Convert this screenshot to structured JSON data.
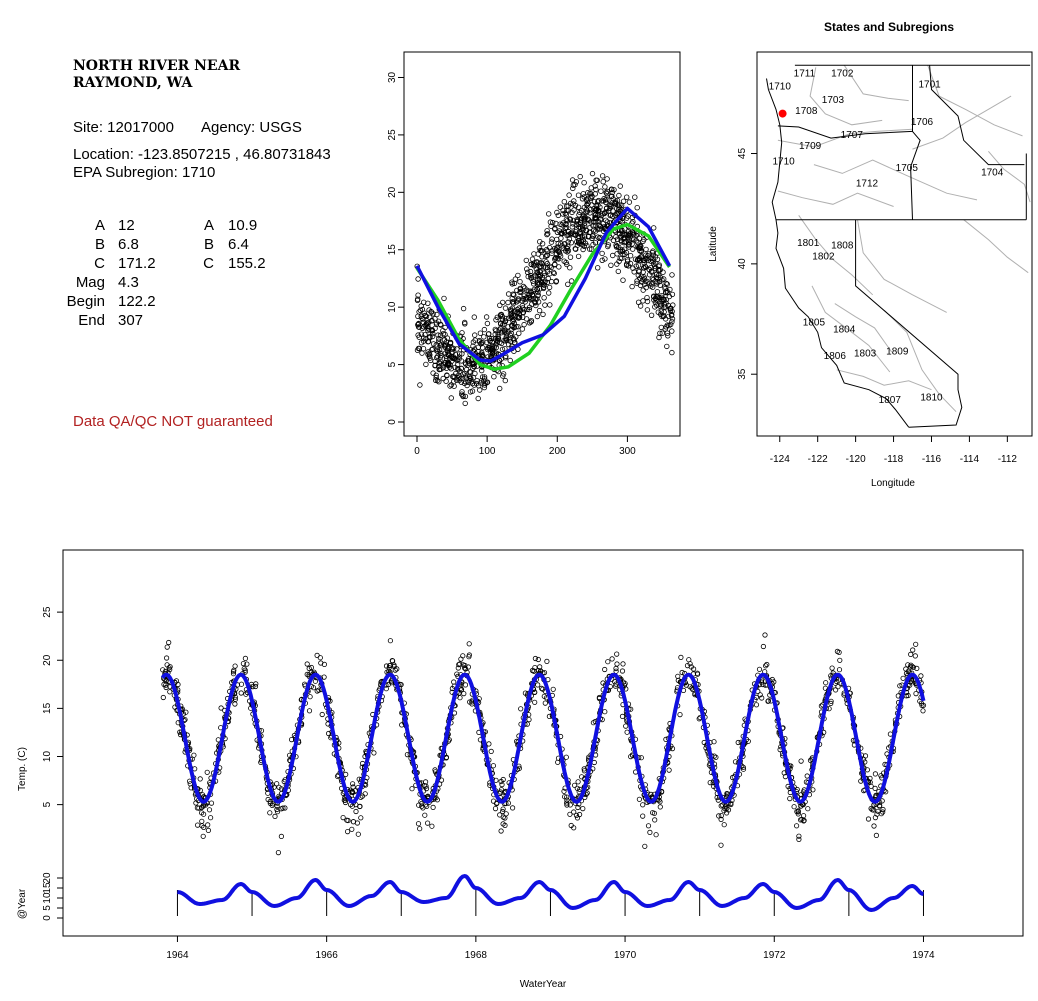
{
  "info": {
    "title_line1": "NORTH RIVER NEAR",
    "title_line2": "RAYMOND, WA",
    "site": "Site: 12017000",
    "agency": "Agency: USGS",
    "location": "Location: -123.8507215 , 46.80731843",
    "epa": "EPA Subregion: 1710",
    "params_left": [
      [
        "A",
        "12"
      ],
      [
        "B",
        "6.8"
      ],
      [
        "C",
        "171.2"
      ],
      [
        "Mag",
        "4.3"
      ],
      [
        "Begin",
        "122.2"
      ],
      [
        "End",
        "307"
      ]
    ],
    "params_right": [
      [
        "A",
        "10.9"
      ],
      [
        "B",
        "6.4"
      ],
      [
        "C",
        "155.2"
      ]
    ],
    "qa_note": "Data QA/QC NOT guaranteed",
    "qa_color": "#b22222"
  },
  "colors": {
    "blue": "#1010e0",
    "green": "#20d020",
    "points": "#000000",
    "state_line": "#000000",
    "subregion_line": "#b0b0b0",
    "site_marker": "#ff0000"
  },
  "chart_data": [
    {
      "type": "scatter",
      "title": "",
      "xlabel": "",
      "ylabel": "",
      "xlim": [
        0,
        365
      ],
      "ylim": [
        0,
        31
      ],
      "xticks": [
        0,
        100,
        200,
        300
      ],
      "yticks": [
        0,
        5,
        10,
        15,
        20,
        25,
        30
      ],
      "series": [
        {
          "kind": "points",
          "description_of_points": "daily water temperature by day of water year (all years overlaid)",
          "model": {
            "offset": 11.4,
            "amp": 6.6,
            "phase_day": 163
          }
        },
        {
          "kind": "line",
          "color": "blue",
          "x": [
            0,
            30,
            60,
            90,
            105,
            120,
            150,
            180,
            210,
            240,
            270,
            300,
            330,
            360
          ],
          "y": [
            13.6,
            10.0,
            6.8,
            5.4,
            5.3,
            5.8,
            6.9,
            7.6,
            9.2,
            12.5,
            16.5,
            18.6,
            17.0,
            13.6
          ]
        },
        {
          "kind": "line",
          "color": "green",
          "x": [
            0,
            30,
            60,
            90,
            110,
            130,
            160,
            190,
            220,
            250,
            280,
            300,
            330,
            360
          ],
          "y": [
            13.4,
            10.6,
            7.2,
            5.0,
            4.6,
            4.8,
            6.0,
            8.4,
            11.6,
            14.6,
            16.8,
            17.2,
            16.2,
            13.5
          ]
        }
      ]
    },
    {
      "type": "map",
      "title": "States and Subregions",
      "xlabel": "Longitude",
      "ylabel": "Latitude",
      "xlim": [
        -125.2,
        -110.7
      ],
      "ylim": [
        32.2,
        49.6
      ],
      "xticks": [
        -124,
        -122,
        -120,
        -118,
        -116,
        -114,
        -112
      ],
      "yticks": [
        35,
        40,
        45
      ],
      "site": {
        "lon": -123.85,
        "lat": 46.81
      },
      "subregion_labels": [
        [
          "1711",
          -122.7,
          48.5
        ],
        [
          "1702",
          -120.7,
          48.5
        ],
        [
          "1701",
          -116.1,
          48.0
        ],
        [
          "1710",
          -124.0,
          47.9
        ],
        [
          "1703",
          -121.2,
          47.3
        ],
        [
          "1708",
          -122.6,
          46.8
        ],
        [
          "1706",
          -116.5,
          46.3
        ],
        [
          "1707",
          -120.2,
          45.7
        ],
        [
          "1709",
          -122.4,
          45.2
        ],
        [
          "1710",
          -123.8,
          44.5
        ],
        [
          "1705",
          -117.3,
          44.2
        ],
        [
          "1704",
          -112.8,
          44.0
        ],
        [
          "1712",
          -119.4,
          43.5
        ],
        [
          "1801",
          -122.5,
          40.8
        ],
        [
          "1808",
          -120.7,
          40.7
        ],
        [
          "1802",
          -121.7,
          40.2
        ],
        [
          "1805",
          -122.2,
          37.2
        ],
        [
          "1804",
          -120.6,
          36.9
        ],
        [
          "1806",
          -121.1,
          35.7
        ],
        [
          "1803",
          -119.5,
          35.8
        ],
        [
          "1809",
          -117.8,
          35.9
        ],
        [
          "1810",
          -116.0,
          33.8
        ],
        [
          "1807",
          -118.2,
          33.7
        ]
      ]
    },
    {
      "type": "line",
      "title": "",
      "xlabel": "WaterYear",
      "ylabel": "Temp. (C)",
      "xlim": [
        1962.6,
        1975.2
      ],
      "ylim": [
        -2,
        30
      ],
      "xticks": [
        1964,
        1966,
        1968,
        1970,
        1972,
        1974
      ],
      "yticks": [
        5,
        10,
        15,
        20,
        25
      ],
      "data_range": [
        1963.8,
        1974.0
      ],
      "series": [
        {
          "kind": "points",
          "description_of_points": "daily water temperature",
          "model": {
            "offset": 11.9,
            "amp": 6.6,
            "peak_year_fraction": 0.85
          }
        },
        {
          "kind": "line",
          "color": "blue",
          "name": "",
          "model": {
            "offset": 11.9,
            "amp": 6.6,
            "peak_year_fraction": 0.85
          }
        }
      ]
    },
    {
      "type": "line",
      "title": "",
      "xlabel": "",
      "ylabel": "@Year",
      "ylim": [
        -3,
        24
      ],
      "yticks": [
        0,
        5,
        10,
        15,
        20
      ],
      "year_ticks": [
        1964,
        1965,
        1966,
        1967,
        1968,
        1969,
        1970,
        1971,
        1972,
        1973,
        1974
      ],
      "series": [
        {
          "kind": "line",
          "color": "blue",
          "x": [
            1964.0,
            1964.3,
            1964.6,
            1964.85,
            1965.0,
            1965.3,
            1965.6,
            1965.85,
            1966.0,
            1966.3,
            1966.6,
            1966.85,
            1967.0,
            1967.3,
            1967.6,
            1967.85,
            1968.0,
            1968.3,
            1968.6,
            1968.85,
            1969.0,
            1969.3,
            1969.6,
            1969.85,
            1970.0,
            1970.3,
            1970.6,
            1970.85,
            1971.0,
            1971.3,
            1971.6,
            1971.85,
            1972.0,
            1972.3,
            1972.6,
            1972.85,
            1973.0,
            1973.3,
            1973.6,
            1973.85,
            1974.0
          ],
          "y": [
            13,
            7,
            9,
            17,
            13,
            6,
            10,
            19,
            14,
            6,
            11,
            18,
            13,
            8,
            10,
            21,
            15,
            7,
            10,
            18,
            14,
            5,
            9,
            18,
            13,
            6,
            9,
            18,
            14,
            6,
            10,
            17,
            13,
            5,
            9,
            19,
            14,
            4,
            10,
            16,
            12
          ]
        }
      ]
    }
  ]
}
